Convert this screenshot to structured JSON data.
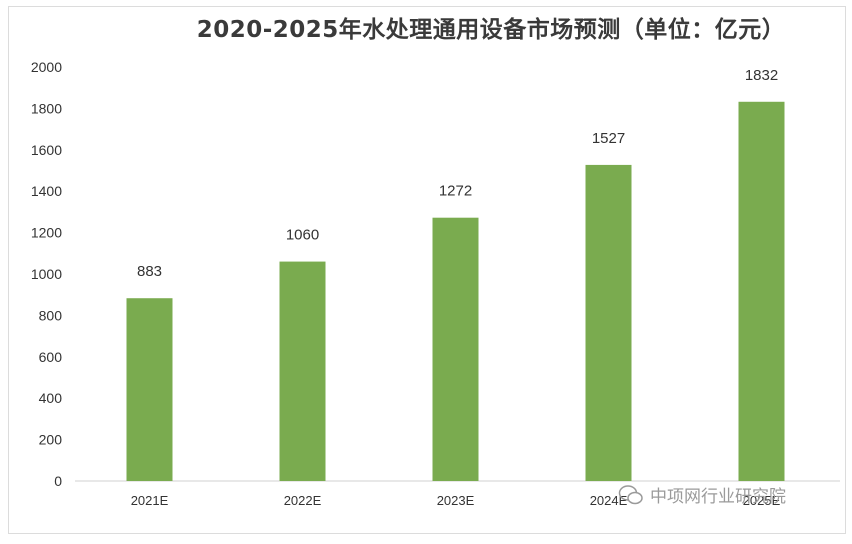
{
  "chart_data": {
    "type": "bar",
    "title": "2020-2025年水处理通用设备市场预测（单位：亿元）",
    "categories": [
      "2021E",
      "2022E",
      "2023E",
      "2024E",
      "2025E"
    ],
    "values": [
      883,
      1060,
      1272,
      1527,
      1832
    ],
    "ylim": [
      0,
      2000
    ],
    "yticks": [
      0,
      200,
      400,
      600,
      800,
      1000,
      1200,
      1400,
      1600,
      1800,
      2000
    ],
    "bar_color": "#7aab4f",
    "grid": false,
    "legend": "none"
  },
  "watermark": "中项网行业研究院"
}
